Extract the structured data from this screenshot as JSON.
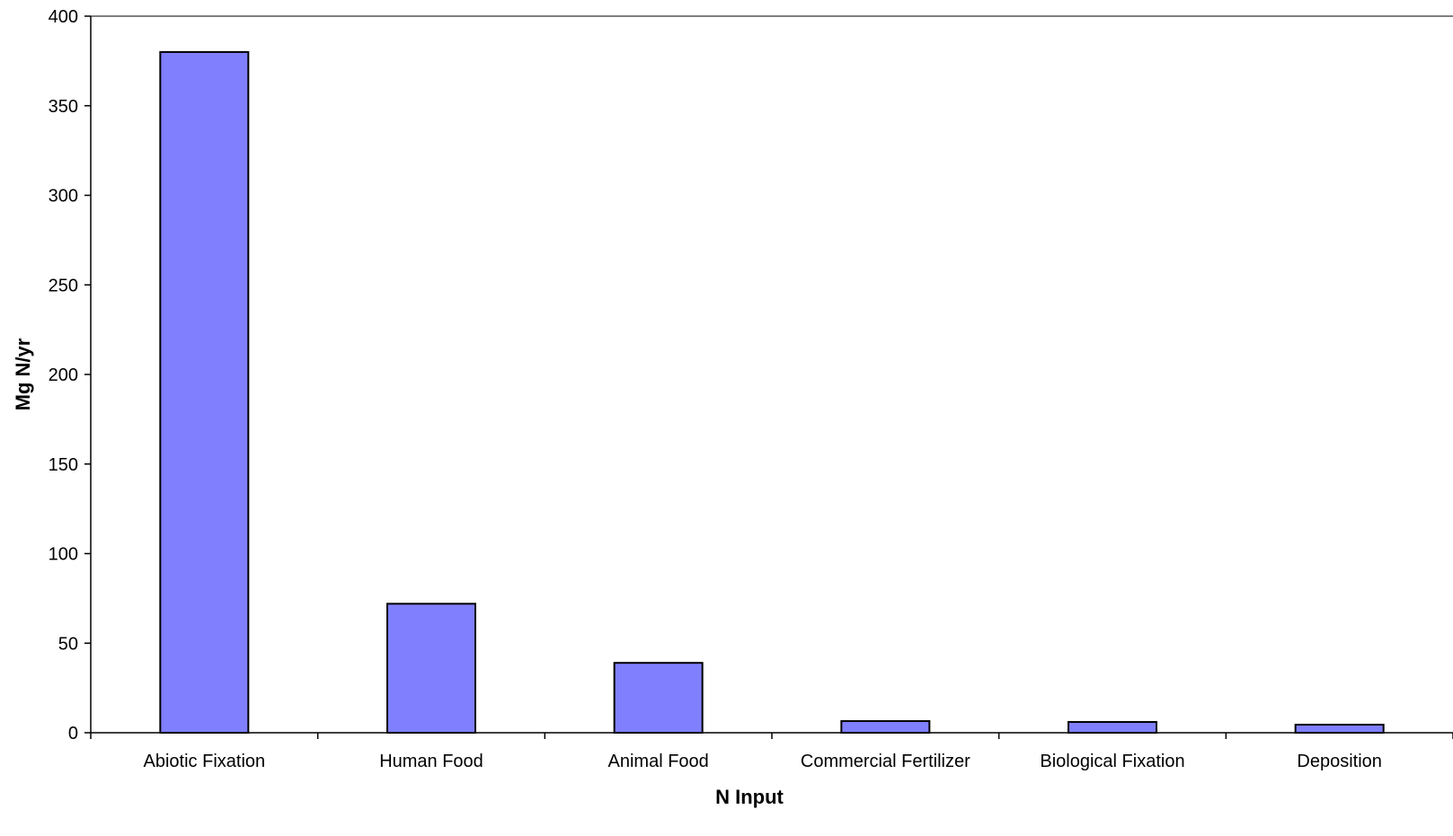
{
  "chart_data": {
    "type": "bar",
    "title": "",
    "xlabel": "N Input",
    "ylabel": "Mg N/yr",
    "categories": [
      "Abiotic Fixation",
      "Human Food",
      "Animal Food",
      "Commercial Fertilizer",
      "Biological Fixation",
      "Deposition"
    ],
    "values": [
      380,
      72,
      39,
      6.5,
      6,
      4.5
    ],
    "ylim": [
      0,
      400
    ],
    "yticks": [
      "0",
      "50",
      "100",
      "150",
      "200",
      "250",
      "300",
      "350",
      "400"
    ],
    "grid": false,
    "legend": "none",
    "bar_color": "#8080FF",
    "bar_edge_color": "#000000"
  }
}
